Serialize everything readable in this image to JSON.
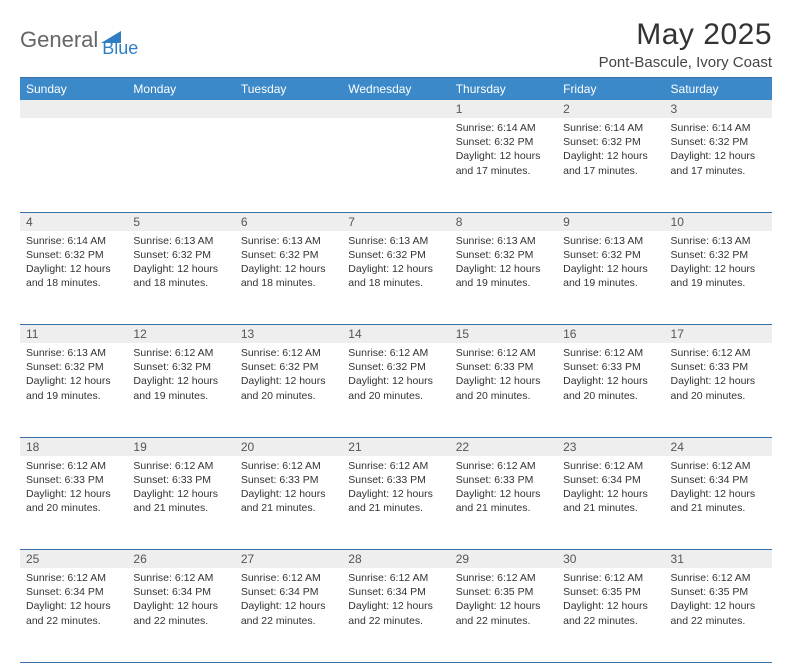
{
  "logo": {
    "part1": "General",
    "part2": "Blue"
  },
  "title": "May 2025",
  "location": "Pont-Bascule, Ivory Coast",
  "colors": {
    "header_bg": "#3b89c9",
    "header_border": "#3b6fa8",
    "daynum_bg": "#eeeeee",
    "text": "#333333",
    "logo_gray": "#666666",
    "logo_blue": "#2f7fc2"
  },
  "day_labels": [
    "Sunday",
    "Monday",
    "Tuesday",
    "Wednesday",
    "Thursday",
    "Friday",
    "Saturday"
  ],
  "weeks": [
    {
      "nums": [
        "",
        "",
        "",
        "",
        "1",
        "2",
        "3"
      ],
      "cells": [
        null,
        null,
        null,
        null,
        {
          "sunrise": "6:14 AM",
          "sunset": "6:32 PM",
          "dl1": "12 hours",
          "dl2": "and 17 minutes."
        },
        {
          "sunrise": "6:14 AM",
          "sunset": "6:32 PM",
          "dl1": "12 hours",
          "dl2": "and 17 minutes."
        },
        {
          "sunrise": "6:14 AM",
          "sunset": "6:32 PM",
          "dl1": "12 hours",
          "dl2": "and 17 minutes."
        }
      ]
    },
    {
      "nums": [
        "4",
        "5",
        "6",
        "7",
        "8",
        "9",
        "10"
      ],
      "cells": [
        {
          "sunrise": "6:14 AM",
          "sunset": "6:32 PM",
          "dl1": "12 hours",
          "dl2": "and 18 minutes."
        },
        {
          "sunrise": "6:13 AM",
          "sunset": "6:32 PM",
          "dl1": "12 hours",
          "dl2": "and 18 minutes."
        },
        {
          "sunrise": "6:13 AM",
          "sunset": "6:32 PM",
          "dl1": "12 hours",
          "dl2": "and 18 minutes."
        },
        {
          "sunrise": "6:13 AM",
          "sunset": "6:32 PM",
          "dl1": "12 hours",
          "dl2": "and 18 minutes."
        },
        {
          "sunrise": "6:13 AM",
          "sunset": "6:32 PM",
          "dl1": "12 hours",
          "dl2": "and 19 minutes."
        },
        {
          "sunrise": "6:13 AM",
          "sunset": "6:32 PM",
          "dl1": "12 hours",
          "dl2": "and 19 minutes."
        },
        {
          "sunrise": "6:13 AM",
          "sunset": "6:32 PM",
          "dl1": "12 hours",
          "dl2": "and 19 minutes."
        }
      ]
    },
    {
      "nums": [
        "11",
        "12",
        "13",
        "14",
        "15",
        "16",
        "17"
      ],
      "cells": [
        {
          "sunrise": "6:13 AM",
          "sunset": "6:32 PM",
          "dl1": "12 hours",
          "dl2": "and 19 minutes."
        },
        {
          "sunrise": "6:12 AM",
          "sunset": "6:32 PM",
          "dl1": "12 hours",
          "dl2": "and 19 minutes."
        },
        {
          "sunrise": "6:12 AM",
          "sunset": "6:32 PM",
          "dl1": "12 hours",
          "dl2": "and 20 minutes."
        },
        {
          "sunrise": "6:12 AM",
          "sunset": "6:32 PM",
          "dl1": "12 hours",
          "dl2": "and 20 minutes."
        },
        {
          "sunrise": "6:12 AM",
          "sunset": "6:33 PM",
          "dl1": "12 hours",
          "dl2": "and 20 minutes."
        },
        {
          "sunrise": "6:12 AM",
          "sunset": "6:33 PM",
          "dl1": "12 hours",
          "dl2": "and 20 minutes."
        },
        {
          "sunrise": "6:12 AM",
          "sunset": "6:33 PM",
          "dl1": "12 hours",
          "dl2": "and 20 minutes."
        }
      ]
    },
    {
      "nums": [
        "18",
        "19",
        "20",
        "21",
        "22",
        "23",
        "24"
      ],
      "cells": [
        {
          "sunrise": "6:12 AM",
          "sunset": "6:33 PM",
          "dl1": "12 hours",
          "dl2": "and 20 minutes."
        },
        {
          "sunrise": "6:12 AM",
          "sunset": "6:33 PM",
          "dl1": "12 hours",
          "dl2": "and 21 minutes."
        },
        {
          "sunrise": "6:12 AM",
          "sunset": "6:33 PM",
          "dl1": "12 hours",
          "dl2": "and 21 minutes."
        },
        {
          "sunrise": "6:12 AM",
          "sunset": "6:33 PM",
          "dl1": "12 hours",
          "dl2": "and 21 minutes."
        },
        {
          "sunrise": "6:12 AM",
          "sunset": "6:33 PM",
          "dl1": "12 hours",
          "dl2": "and 21 minutes."
        },
        {
          "sunrise": "6:12 AM",
          "sunset": "6:34 PM",
          "dl1": "12 hours",
          "dl2": "and 21 minutes."
        },
        {
          "sunrise": "6:12 AM",
          "sunset": "6:34 PM",
          "dl1": "12 hours",
          "dl2": "and 21 minutes."
        }
      ]
    },
    {
      "nums": [
        "25",
        "26",
        "27",
        "28",
        "29",
        "30",
        "31"
      ],
      "cells": [
        {
          "sunrise": "6:12 AM",
          "sunset": "6:34 PM",
          "dl1": "12 hours",
          "dl2": "and 22 minutes."
        },
        {
          "sunrise": "6:12 AM",
          "sunset": "6:34 PM",
          "dl1": "12 hours",
          "dl2": "and 22 minutes."
        },
        {
          "sunrise": "6:12 AM",
          "sunset": "6:34 PM",
          "dl1": "12 hours",
          "dl2": "and 22 minutes."
        },
        {
          "sunrise": "6:12 AM",
          "sunset": "6:34 PM",
          "dl1": "12 hours",
          "dl2": "and 22 minutes."
        },
        {
          "sunrise": "6:12 AM",
          "sunset": "6:35 PM",
          "dl1": "12 hours",
          "dl2": "and 22 minutes."
        },
        {
          "sunrise": "6:12 AM",
          "sunset": "6:35 PM",
          "dl1": "12 hours",
          "dl2": "and 22 minutes."
        },
        {
          "sunrise": "6:12 AM",
          "sunset": "6:35 PM",
          "dl1": "12 hours",
          "dl2": "and 22 minutes."
        }
      ]
    }
  ],
  "labels": {
    "sunrise_prefix": "Sunrise: ",
    "sunset_prefix": "Sunset: ",
    "daylight_prefix": "Daylight: "
  }
}
